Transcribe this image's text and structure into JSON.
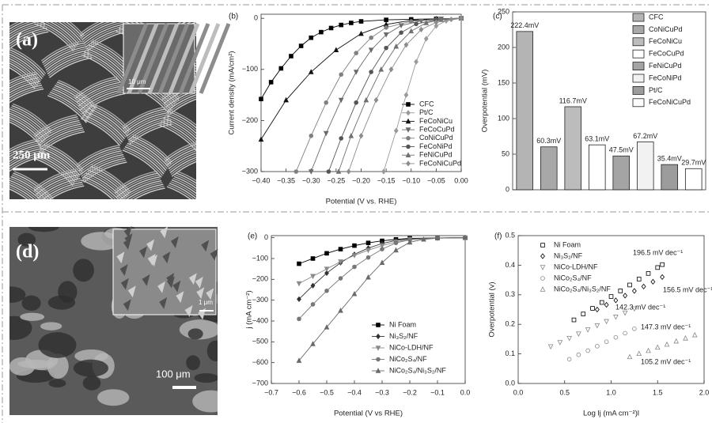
{
  "images": [
    {
      "label": "(a)",
      "inset_scale": "10 μm",
      "scale": "250 μm"
    },
    {
      "label": "(d)",
      "inset_scale": "1 μm",
      "scale": "100 μm"
    }
  ],
  "chart_data": [
    {
      "type": "line",
      "label": "(b)",
      "x_label": "Potential (V vs. RHE)",
      "y_label": "Current density (mA/cm²)",
      "xlim": [
        -0.4,
        0.0
      ],
      "ylim": [
        -300,
        8
      ],
      "xticks": [
        {
          "value": -0.4,
          "label": "−0.40"
        },
        {
          "value": -0.35,
          "label": "−0.35"
        },
        {
          "value": -0.3,
          "label": "−0.30"
        },
        {
          "value": -0.25,
          "label": "−0.25"
        },
        {
          "value": -0.2,
          "label": "−0.20"
        },
        {
          "value": -0.15,
          "label": "−0.15"
        },
        {
          "value": -0.1,
          "label": "−0.10"
        },
        {
          "value": -0.05,
          "label": "−0.05"
        },
        {
          "value": 0,
          "label": "0.00"
        }
      ],
      "yticks": [
        0,
        {
          "value": -100,
          "label": "−100"
        },
        {
          "value": -200,
          "label": "−200"
        },
        {
          "value": -300,
          "label": "−300"
        }
      ],
      "series": [
        {
          "name": "CFC",
          "color": "#000000",
          "marker": "square",
          "x": [
            -0.4,
            -0.38,
            -0.36,
            -0.34,
            -0.32,
            -0.3,
            -0.28,
            -0.26,
            -0.24,
            -0.22,
            -0.2,
            -0.15,
            -0.1,
            -0.05,
            0.0
          ],
          "values": [
            -158,
            -125,
            -98,
            -74,
            -54,
            -38,
            -27,
            -19,
            -13,
            -9,
            -6,
            -3,
            -2,
            -1,
            0
          ]
        },
        {
          "name": "Pt/C",
          "color": "#9a9a9a",
          "marker": "diamond",
          "x": [
            -0.155,
            -0.13,
            -0.11,
            -0.09,
            -0.07,
            -0.05,
            -0.03,
            0.0
          ],
          "values": [
            -300,
            -220,
            -150,
            -85,
            -40,
            -15,
            -5,
            0
          ]
        },
        {
          "name": "FeCoNiCu",
          "color": "#111111",
          "marker": "triangle",
          "x": [
            -0.4,
            -0.35,
            -0.3,
            -0.25,
            -0.2,
            -0.15,
            -0.1,
            -0.05,
            0.0
          ],
          "values": [
            -237,
            -160,
            -105,
            -62,
            -30,
            -12,
            -4,
            -1,
            0
          ]
        },
        {
          "name": "FeCoCuPd",
          "color": "#6a6a6a",
          "marker": "triangle-down",
          "x": [
            -0.3,
            -0.27,
            -0.24,
            -0.21,
            -0.18,
            -0.15,
            -0.12,
            -0.08,
            -0.04,
            0.0
          ],
          "values": [
            -300,
            -225,
            -160,
            -105,
            -62,
            -32,
            -14,
            -5,
            -1,
            0
          ]
        },
        {
          "name": "CoNiCuPd",
          "color": "#808080",
          "marker": "circle",
          "x": [
            -0.33,
            -0.3,
            -0.27,
            -0.24,
            -0.21,
            -0.18,
            -0.15,
            -0.1,
            -0.05,
            0.0
          ],
          "values": [
            -300,
            -230,
            -165,
            -110,
            -68,
            -38,
            -18,
            -6,
            -2,
            0
          ]
        },
        {
          "name": "FeCoNiPd",
          "color": "#555555",
          "marker": "circle",
          "x": [
            -0.265,
            -0.24,
            -0.21,
            -0.18,
            -0.15,
            -0.12,
            -0.09,
            -0.05,
            0.0
          ],
          "values": [
            -300,
            -235,
            -165,
            -105,
            -58,
            -28,
            -11,
            -3,
            0
          ]
        },
        {
          "name": "FeNiCuPd",
          "color": "#707070",
          "marker": "triangle",
          "x": [
            -0.245,
            -0.22,
            -0.19,
            -0.16,
            -0.13,
            -0.1,
            -0.07,
            -0.04,
            0.0
          ],
          "values": [
            -300,
            -230,
            -160,
            -100,
            -55,
            -25,
            -9,
            -3,
            0
          ]
        },
        {
          "name": "FeCoNiCuPd",
          "color": "#8c8c8c",
          "marker": "diamond",
          "x": [
            -0.225,
            -0.2,
            -0.17,
            -0.14,
            -0.11,
            -0.08,
            -0.05,
            -0.02,
            0.0
          ],
          "values": [
            -300,
            -230,
            -160,
            -100,
            -52,
            -22,
            -8,
            -2,
            0
          ]
        }
      ]
    },
    {
      "type": "bar",
      "label": "(c)",
      "y_label": "Overpotential (mV)",
      "ylim": [
        0,
        250
      ],
      "yticks": [
        0,
        50,
        100,
        150,
        200,
        250
      ],
      "categories": [
        "CFC",
        "CoNiCuPd",
        "FeCoNiCu",
        "FeCoCuPd",
        "FeNiCuPd",
        "FeCoNiPd",
        "Pt/C",
        "FeCoNiCuPd"
      ],
      "values": [
        222.4,
        60.3,
        116.7,
        63.1,
        47.5,
        67.2,
        35.4,
        29.7
      ],
      "value_labels": [
        "222.4mV",
        "60.3mV",
        "116.7mV",
        "63.1mV",
        "47.5mV",
        "67.2mV",
        "35.4mV",
        "29.7mV"
      ],
      "colors": [
        "#b4b4b4",
        "#a8a8a8",
        "#bcbcbc",
        "#ffffff",
        "#a4a4a4",
        "#f2f2f2",
        "#9c9c9c",
        "#ffffff"
      ]
    },
    {
      "type": "line",
      "label": "(e)",
      "x_label": "Potential (V vs RHE)",
      "y_label": "j (mA cm⁻²)",
      "xlim": [
        -0.7,
        0.0
      ],
      "ylim": [
        -700,
        10
      ],
      "xticks": [
        {
          "value": -0.7,
          "label": "−0.7"
        },
        {
          "value": -0.6,
          "label": "−0.6"
        },
        {
          "value": -0.5,
          "label": "−0.5"
        },
        {
          "value": -0.4,
          "label": "−0.4"
        },
        {
          "value": -0.3,
          "label": "−0.3"
        },
        {
          "value": -0.2,
          "label": "−0.2"
        },
        {
          "value": -0.1,
          "label": "−0.1"
        },
        {
          "value": 0,
          "label": "0.0"
        }
      ],
      "yticks": [
        0,
        {
          "value": -100,
          "label": "−100"
        },
        {
          "value": -200,
          "label": "−200"
        },
        {
          "value": -300,
          "label": "−300"
        },
        {
          "value": -400,
          "label": "−400"
        },
        {
          "value": -500,
          "label": "−500"
        },
        {
          "value": -600,
          "label": "−600"
        },
        {
          "value": -700,
          "label": "−700"
        }
      ],
      "series": [
        {
          "name": "Ni Foam",
          "color": "#000000",
          "marker": "square",
          "x": [
            -0.6,
            -0.55,
            -0.5,
            -0.45,
            -0.4,
            -0.35,
            -0.3,
            -0.25,
            -0.2,
            -0.1,
            0.0
          ],
          "values": [
            -125,
            -100,
            -75,
            -55,
            -38,
            -25,
            -15,
            -8,
            -3,
            -1,
            0
          ]
        },
        {
          "name": "Ni₃S₂/NF",
          "color": "#333333",
          "marker": "diamond",
          "x": [
            -0.6,
            -0.55,
            -0.5,
            -0.45,
            -0.4,
            -0.35,
            -0.3,
            -0.25,
            -0.2,
            -0.1,
            0.0
          ],
          "values": [
            -295,
            -230,
            -170,
            -120,
            -80,
            -50,
            -28,
            -13,
            -5,
            -1,
            0
          ]
        },
        {
          "name": "NiCo-LDH/NF",
          "color": "#8a8a8a",
          "marker": "triangle-down",
          "x": [
            -0.6,
            -0.55,
            -0.5,
            -0.45,
            -0.4,
            -0.35,
            -0.3,
            -0.25,
            -0.2,
            -0.1,
            0.0
          ],
          "values": [
            -220,
            -185,
            -150,
            -115,
            -85,
            -60,
            -38,
            -20,
            -8,
            -2,
            0
          ]
        },
        {
          "name": "NiCo₂S₄/NF",
          "color": "#777777",
          "marker": "circle",
          "x": [
            -0.6,
            -0.55,
            -0.5,
            -0.45,
            -0.4,
            -0.35,
            -0.3,
            -0.25,
            -0.2,
            -0.1,
            0.0
          ],
          "values": [
            -390,
            -320,
            -255,
            -195,
            -140,
            -95,
            -55,
            -25,
            -10,
            -2,
            0
          ]
        },
        {
          "name": "NiCo₂S₄/Ni₃S₂/NF",
          "color": "#6a6a6a",
          "marker": "triangle",
          "x": [
            -0.6,
            -0.55,
            -0.5,
            -0.45,
            -0.4,
            -0.35,
            -0.3,
            -0.25,
            -0.2,
            -0.15,
            -0.1,
            0.0
          ],
          "values": [
            -590,
            -510,
            -430,
            -350,
            -270,
            -190,
            -120,
            -60,
            -22,
            -8,
            -2,
            0
          ]
        }
      ]
    },
    {
      "type": "scatter",
      "label": "(f)",
      "x_label": "Log lj (mA cm⁻²)l",
      "y_label": "Overpotential (v)",
      "xlim": [
        0.0,
        2.0
      ],
      "ylim": [
        0.0,
        0.5
      ],
      "xticks": [
        {
          "value": 0,
          "label": "0.0"
        },
        0.5,
        {
          "value": 1,
          "label": "1.0"
        },
        1.5,
        {
          "value": 2,
          "label": "2.0"
        }
      ],
      "yticks": [
        {
          "value": 0,
          "label": "0.0"
        },
        0.1,
        0.2,
        0.3,
        0.4,
        0.5
      ],
      "series": [
        {
          "name": "Ni Foam",
          "color": "#000000",
          "marker": "square",
          "x": [
            0.6,
            0.7,
            0.8,
            0.9,
            1.0,
            1.1,
            1.2,
            1.3,
            1.4,
            1.5,
            1.55
          ],
          "values": [
            0.215,
            0.235,
            0.254,
            0.274,
            0.294,
            0.313,
            0.333,
            0.353,
            0.372,
            0.392,
            0.402
          ]
        },
        {
          "name": "Ni₃S₂/NF",
          "color": "#000000",
          "marker": "diamond",
          "x": [
            0.85,
            0.95,
            1.05,
            1.15,
            1.25,
            1.35,
            1.45,
            1.55
          ],
          "values": [
            0.25,
            0.266,
            0.281,
            0.297,
            0.313,
            0.328,
            0.344,
            0.36
          ]
        },
        {
          "name": "NiCo-LDH/NF",
          "color": "#888888",
          "marker": "triangle-down",
          "x": [
            0.35,
            0.45,
            0.55,
            0.65,
            0.75,
            0.85,
            0.95,
            1.05,
            1.15,
            1.25
          ],
          "values": [
            0.125,
            0.139,
            0.153,
            0.168,
            0.182,
            0.196,
            0.21,
            0.225,
            0.239,
            0.253
          ]
        },
        {
          "name": "NiCo₂S₄/NF",
          "color": "#888888",
          "marker": "circle",
          "x": [
            0.55,
            0.65,
            0.75,
            0.85,
            0.95,
            1.05,
            1.15,
            1.25
          ],
          "values": [
            0.082,
            0.097,
            0.111,
            0.126,
            0.141,
            0.156,
            0.17,
            0.185
          ]
        },
        {
          "name": "NiCo₂S₄/Ni₃S₂/NF",
          "color": "#888888",
          "marker": "triangle",
          "x": [
            1.2,
            1.3,
            1.4,
            1.5,
            1.6,
            1.7,
            1.8,
            1.9
          ],
          "values": [
            0.09,
            0.101,
            0.111,
            0.122,
            0.132,
            0.143,
            0.153,
            0.164
          ]
        }
      ],
      "annotations": [
        {
          "text": "196.5 mV dec⁻¹",
          "color": "#000000"
        },
        {
          "text": "156.5 mV dec⁻¹",
          "color": "#000000"
        },
        {
          "text": "142.3 mV dec⁻¹",
          "color": "#888888"
        },
        {
          "text": "147.3 mV dec⁻¹",
          "color": "#888888"
        },
        {
          "text": "105.2 mV dec⁻¹",
          "color": "#888888"
        }
      ]
    }
  ]
}
